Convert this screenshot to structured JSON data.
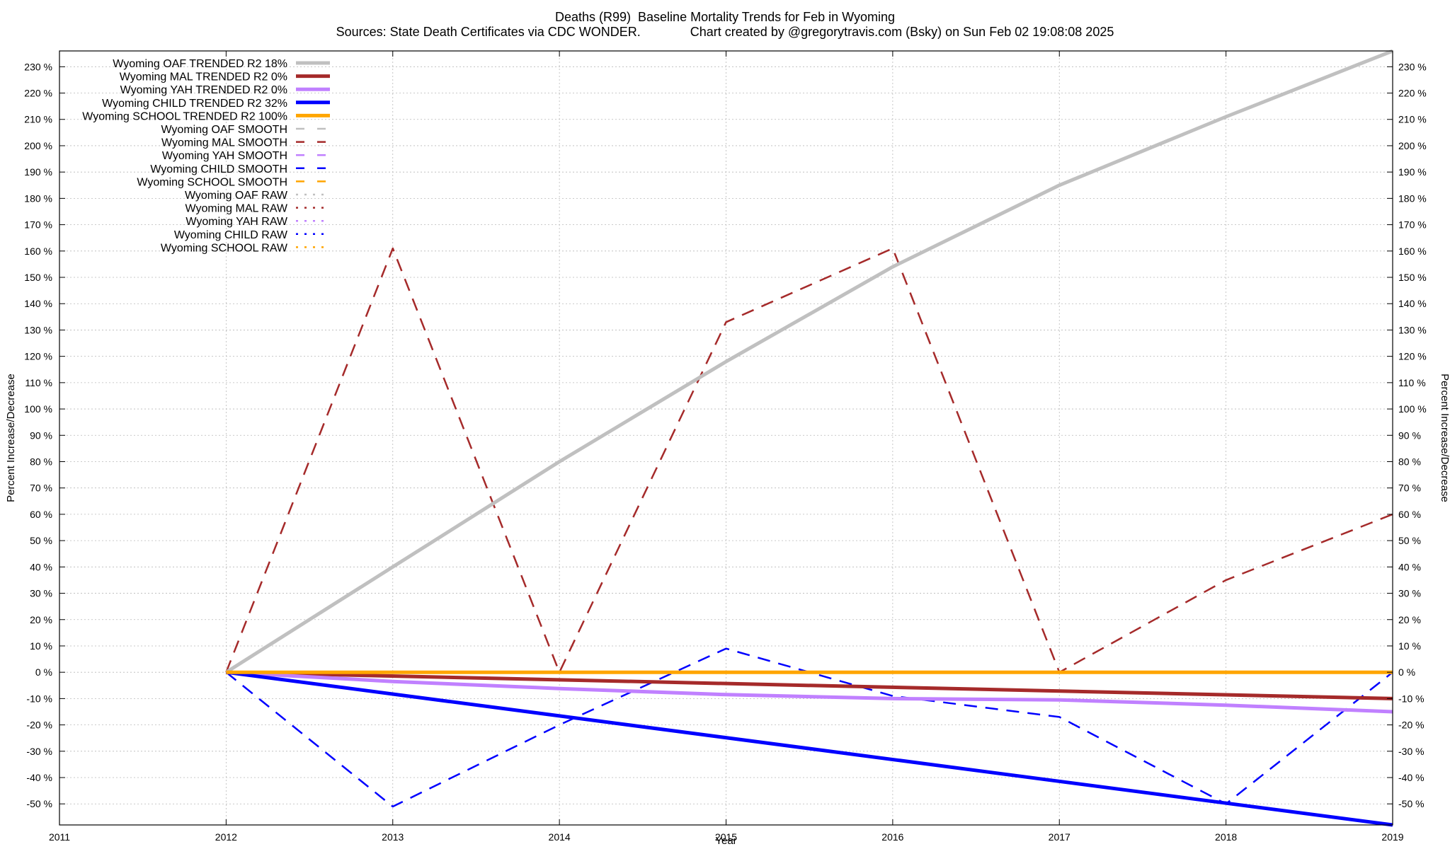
{
  "chart_data": {
    "type": "line",
    "title": "Deaths (R99)  Baseline Mortality Trends for Feb in Wyoming",
    "subtitle": "Sources: State Death Certificates via CDC WONDER.              Chart created by @gregorytravis.com (Bsky) on Sun Feb 02 19:08:08 2025",
    "xlabel": "Year",
    "ylabel": "Percent Increase/Decrease",
    "y2label": "Percent Increase/Decrease",
    "xlim": [
      2011,
      2019
    ],
    "ylim": [
      -58,
      236
    ],
    "x_ticks": [
      "2011",
      "2012",
      "2013",
      "2014",
      "2015",
      "2016",
      "2017",
      "2018",
      "2019"
    ],
    "y_ticks": [
      {
        "v": 230,
        "label": "230 %"
      },
      {
        "v": 220,
        "label": "220 %"
      },
      {
        "v": 210,
        "label": "210 %"
      },
      {
        "v": 200,
        "label": "200 %"
      },
      {
        "v": 190,
        "label": "190 %"
      },
      {
        "v": 180,
        "label": "180 %"
      },
      {
        "v": 170,
        "label": "170 %"
      },
      {
        "v": 160,
        "label": "160 %"
      },
      {
        "v": 150,
        "label": "150 %"
      },
      {
        "v": 140,
        "label": "140 %"
      },
      {
        "v": 130,
        "label": "130 %"
      },
      {
        "v": 120,
        "label": "120 %"
      },
      {
        "v": 110,
        "label": "110 %"
      },
      {
        "v": 100,
        "label": "100 %"
      },
      {
        "v": 90,
        "label": "90 %"
      },
      {
        "v": 80,
        "label": "80 %"
      },
      {
        "v": 70,
        "label": "70 %"
      },
      {
        "v": 60,
        "label": "60 %"
      },
      {
        "v": 50,
        "label": "50 %"
      },
      {
        "v": 40,
        "label": "40 %"
      },
      {
        "v": 30,
        "label": "30 %"
      },
      {
        "v": 20,
        "label": "20 %"
      },
      {
        "v": 10,
        "label": "10 %"
      },
      {
        "v": 0,
        "label": "0 %"
      },
      {
        "v": -10,
        "label": "-10 %"
      },
      {
        "v": -20,
        "label": "-20 %"
      },
      {
        "v": -30,
        "label": "-30 %"
      },
      {
        "v": -40,
        "label": "-40 %"
      },
      {
        "v": -50,
        "label": "-50 %"
      }
    ],
    "legend_position": "top-left",
    "series": [
      {
        "name": "Wyoming OAF TRENDED R2  18%",
        "style": "solid",
        "color": "#c0c0c0",
        "width": 5,
        "x": [
          2012,
          2013,
          2014,
          2015,
          2016,
          2017,
          2018,
          2019
        ],
        "values": [
          0,
          40,
          80,
          118,
          154,
          185,
          211,
          236
        ]
      },
      {
        "name": "Wyoming MAL TRENDED R2   0%",
        "style": "solid",
        "color": "#a52a2a",
        "width": 5,
        "x": [
          2012,
          2019
        ],
        "values": [
          0,
          -10
        ]
      },
      {
        "name": "Wyoming YAH TRENDED R2   0%",
        "style": "solid",
        "color": "#c080ff",
        "width": 5,
        "x": [
          2012,
          2013,
          2014,
          2015,
          2016,
          2017,
          2018,
          2019
        ],
        "values": [
          0,
          -3.5,
          -6.2,
          -8.5,
          -10,
          -10.5,
          -12.5,
          -15
        ]
      },
      {
        "name": "Wyoming CHILD TRENDED R2  32%",
        "style": "solid",
        "color": "#0000ff",
        "width": 5,
        "x": [
          2012,
          2019
        ],
        "values": [
          0,
          -58
        ]
      },
      {
        "name": "Wyoming SCHOOL TRENDED R2 100%",
        "style": "solid",
        "color": "#ffa500",
        "width": 5,
        "x": [
          2012,
          2019
        ],
        "values": [
          0,
          0
        ]
      },
      {
        "name": "Wyoming OAF SMOOTH",
        "style": "dashed",
        "color": "#c0c0c0",
        "width": 2.5,
        "x": [],
        "values": []
      },
      {
        "name": "Wyoming MAL SMOOTH",
        "style": "dashed",
        "color": "#a52a2a",
        "width": 2.5,
        "x": [
          2012,
          2013,
          2014,
          2015,
          2016,
          2017,
          2018,
          2019
        ],
        "values": [
          0,
          161,
          0,
          133,
          161,
          0,
          35,
          60
        ]
      },
      {
        "name": "Wyoming YAH SMOOTH",
        "style": "dashed",
        "color": "#c080ff",
        "width": 2.5,
        "x": [],
        "values": []
      },
      {
        "name": "Wyoming CHILD SMOOTH",
        "style": "dashed",
        "color": "#0000ff",
        "width": 2.5,
        "x": [
          2012,
          2013,
          2014,
          2015,
          2016,
          2017,
          2018,
          2019
        ],
        "values": [
          0,
          -51,
          -20,
          9,
          -9,
          -17,
          -50,
          0
        ]
      },
      {
        "name": "Wyoming SCHOOL SMOOTH",
        "style": "dashed",
        "color": "#ffa500",
        "width": 2.5,
        "x": [],
        "values": []
      },
      {
        "name": "Wyoming OAF RAW",
        "style": "dotted",
        "color": "#c0c0c0",
        "width": 2.5,
        "x": [],
        "values": []
      },
      {
        "name": "Wyoming MAL RAW",
        "style": "dotted",
        "color": "#a52a2a",
        "width": 2.5,
        "x": [],
        "values": []
      },
      {
        "name": "Wyoming YAH RAW",
        "style": "dotted",
        "color": "#c080ff",
        "width": 2.5,
        "x": [],
        "values": []
      },
      {
        "name": "Wyoming CHILD RAW",
        "style": "dotted",
        "color": "#0000ff",
        "width": 2.5,
        "x": [],
        "values": []
      },
      {
        "name": "Wyoming SCHOOL RAW",
        "style": "dotted",
        "color": "#ffa500",
        "width": 2.5,
        "x": [],
        "values": []
      }
    ]
  }
}
